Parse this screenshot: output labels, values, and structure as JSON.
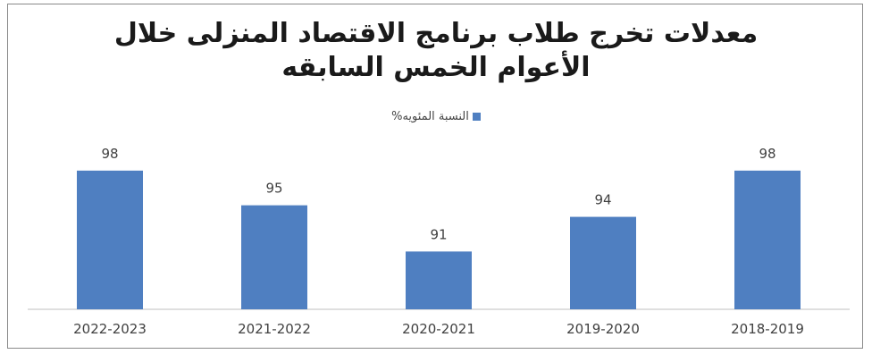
{
  "chart_data": {
    "type": "bar",
    "title": [
      "معدلات تخرج طلاب برنامج الاقتصاد المنزلى خلال",
      "الأعوام الخمس السابقه"
    ],
    "legend": "النسبة المئويه%",
    "legend_position": "top",
    "categories": [
      "2022-2023",
      "2021-2022",
      "2020-2021",
      "2019-2020",
      "2018-2019"
    ],
    "series": [
      {
        "name": "النسبة المئويه%",
        "values": [
          98,
          95,
          91,
          94,
          98
        ]
      }
    ],
    "data_labels": [
      "98",
      "95",
      "91",
      "94",
      "98"
    ],
    "ylim": [
      86,
      100
    ],
    "grid": false,
    "bar_color": "#4f7fc1"
  }
}
